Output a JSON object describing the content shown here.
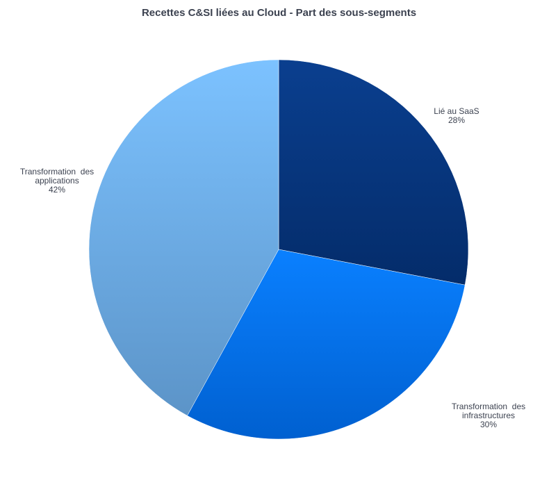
{
  "chart_data": {
    "type": "pie",
    "title": "Recettes C&SI liées au Cloud - Part des sous-segments",
    "slices": [
      {
        "label": "Lié au SaaS",
        "label_lines": [
          "Lié au SaaS"
        ],
        "value": 28,
        "value_label": "28%",
        "color_top": "#0a3f8f",
        "color_bottom": "#042c6a"
      },
      {
        "label": "Transformation des infrastructures",
        "label_lines": [
          "Transformation  des",
          "infrastructures"
        ],
        "value": 30,
        "value_label": "30%",
        "color_top": "#0a80ff",
        "color_bottom": "#0060d0"
      },
      {
        "label": "Transformation des applications",
        "label_lines": [
          "Transformation  des",
          "applications"
        ],
        "value": 42,
        "value_label": "42%",
        "color_top": "#7cc2ff",
        "color_bottom": "#5c94c8"
      }
    ],
    "start_angle_deg": 0,
    "direction": "clockwise",
    "legend": "none"
  }
}
